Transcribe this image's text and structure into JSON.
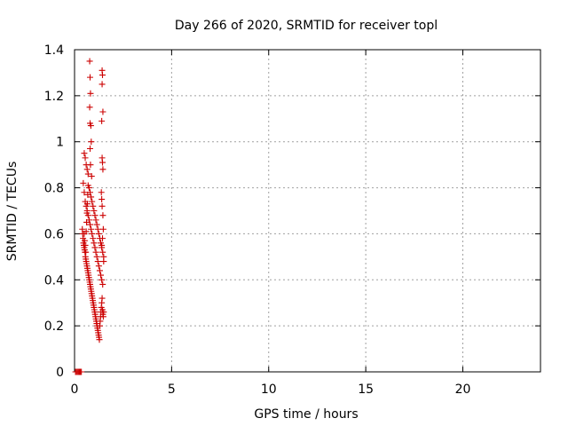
{
  "chart_data": {
    "type": "scatter",
    "title": "Day 266 of 2020, SRMTID for receiver topl",
    "xlabel": "GPS time / hours",
    "ylabel": "SRMTID / TECUs",
    "xlim": [
      0,
      24
    ],
    "ylim": [
      0,
      1.4
    ],
    "xticks": [
      0,
      5,
      10,
      15,
      20
    ],
    "xtick_labels": [
      "0",
      "5",
      "10",
      "15",
      "20"
    ],
    "yticks": [
      0,
      0.2,
      0.4,
      0.6,
      0.8,
      1.0,
      1.2,
      1.4
    ],
    "ytick_labels": [
      "0",
      "0.2",
      "0.4",
      "0.6",
      "0.8",
      "1",
      "1.2",
      "1.4"
    ],
    "grid": true,
    "marker": "plus",
    "color": "#cc0000",
    "x": [
      0.05,
      0.1,
      0.15,
      0.2,
      0.25,
      0.3,
      0.35,
      0.4,
      0.42,
      0.44,
      0.46,
      0.48,
      0.5,
      0.52,
      0.54,
      0.56,
      0.58,
      0.6,
      0.62,
      0.64,
      0.66,
      0.68,
      0.7,
      0.72,
      0.74,
      0.76,
      0.78,
      0.8,
      0.82,
      0.84,
      0.86,
      0.88,
      0.9,
      0.92,
      0.94,
      0.96,
      0.98,
      1.0,
      1.02,
      1.04,
      1.06,
      1.08,
      1.1,
      1.12,
      1.14,
      1.16,
      1.18,
      1.2,
      1.22,
      1.24,
      1.26,
      1.28,
      1.3,
      1.32,
      1.34,
      1.36,
      1.38,
      1.4,
      1.42,
      1.44,
      1.46,
      1.48,
      1.5,
      0.45,
      0.5,
      0.55,
      0.6,
      0.65,
      0.7,
      0.75,
      0.8,
      0.85,
      0.9,
      0.95,
      1.0,
      1.05,
      1.1,
      1.15,
      1.2,
      1.25,
      1.3,
      1.35,
      1.4,
      1.45,
      0.5,
      0.55,
      0.6,
      0.65,
      0.7,
      0.75,
      0.8,
      0.85,
      0.9,
      0.95,
      1.0,
      1.05,
      1.1,
      1.15,
      1.2,
      1.25,
      1.3,
      1.35,
      1.4,
      1.45,
      1.5,
      0.78,
      0.8,
      0.82,
      0.78,
      0.8,
      0.84,
      0.86,
      0.8,
      0.82,
      0.88,
      1.42,
      1.44,
      1.42,
      1.46,
      1.4,
      1.42,
      1.44,
      1.46,
      1.38,
      1.4,
      1.42,
      1.46,
      1.48,
      1.44,
      1.4,
      1.5,
      0.6,
      0.62,
      0.64,
      0.66,
      0.68,
      0.7,
      0.5,
      0.52,
      0.55,
      0.58
    ],
    "y": [
      0.0,
      0.0,
      0.0,
      0.0,
      0.0,
      0.0,
      0.0,
      0.62,
      0.6,
      0.58,
      0.56,
      0.55,
      0.54,
      0.53,
      0.52,
      0.5,
      0.49,
      0.48,
      0.47,
      0.46,
      0.45,
      0.44,
      0.43,
      0.42,
      0.41,
      0.4,
      0.39,
      0.38,
      0.37,
      0.36,
      0.35,
      0.34,
      0.33,
      0.32,
      0.31,
      0.3,
      0.29,
      0.28,
      0.27,
      0.26,
      0.25,
      0.24,
      0.23,
      0.22,
      0.21,
      0.2,
      0.19,
      0.18,
      0.17,
      0.16,
      0.15,
      0.14,
      0.2,
      0.22,
      0.24,
      0.26,
      0.28,
      0.3,
      0.32,
      0.27,
      0.25,
      0.24,
      0.26,
      0.82,
      0.78,
      0.74,
      0.72,
      0.7,
      0.68,
      0.66,
      0.64,
      0.62,
      0.6,
      0.58,
      0.56,
      0.54,
      0.52,
      0.5,
      0.48,
      0.46,
      0.44,
      0.42,
      0.4,
      0.38,
      0.95,
      0.93,
      0.9,
      0.88,
      0.86,
      0.8,
      0.78,
      0.76,
      0.74,
      0.72,
      0.7,
      0.68,
      0.66,
      0.64,
      0.62,
      0.6,
      0.58,
      0.56,
      0.54,
      0.52,
      0.5,
      1.35,
      1.28,
      1.21,
      1.15,
      1.08,
      1.07,
      1.0,
      0.97,
      0.9,
      0.85,
      1.31,
      1.29,
      1.25,
      1.13,
      1.09,
      0.93,
      0.91,
      0.88,
      0.78,
      0.75,
      0.72,
      0.68,
      0.62,
      0.58,
      0.55,
      0.48,
      0.61,
      0.65,
      0.69,
      0.73,
      0.77,
      0.81,
      0.6,
      0.57,
      0.55,
      0.52
    ]
  }
}
